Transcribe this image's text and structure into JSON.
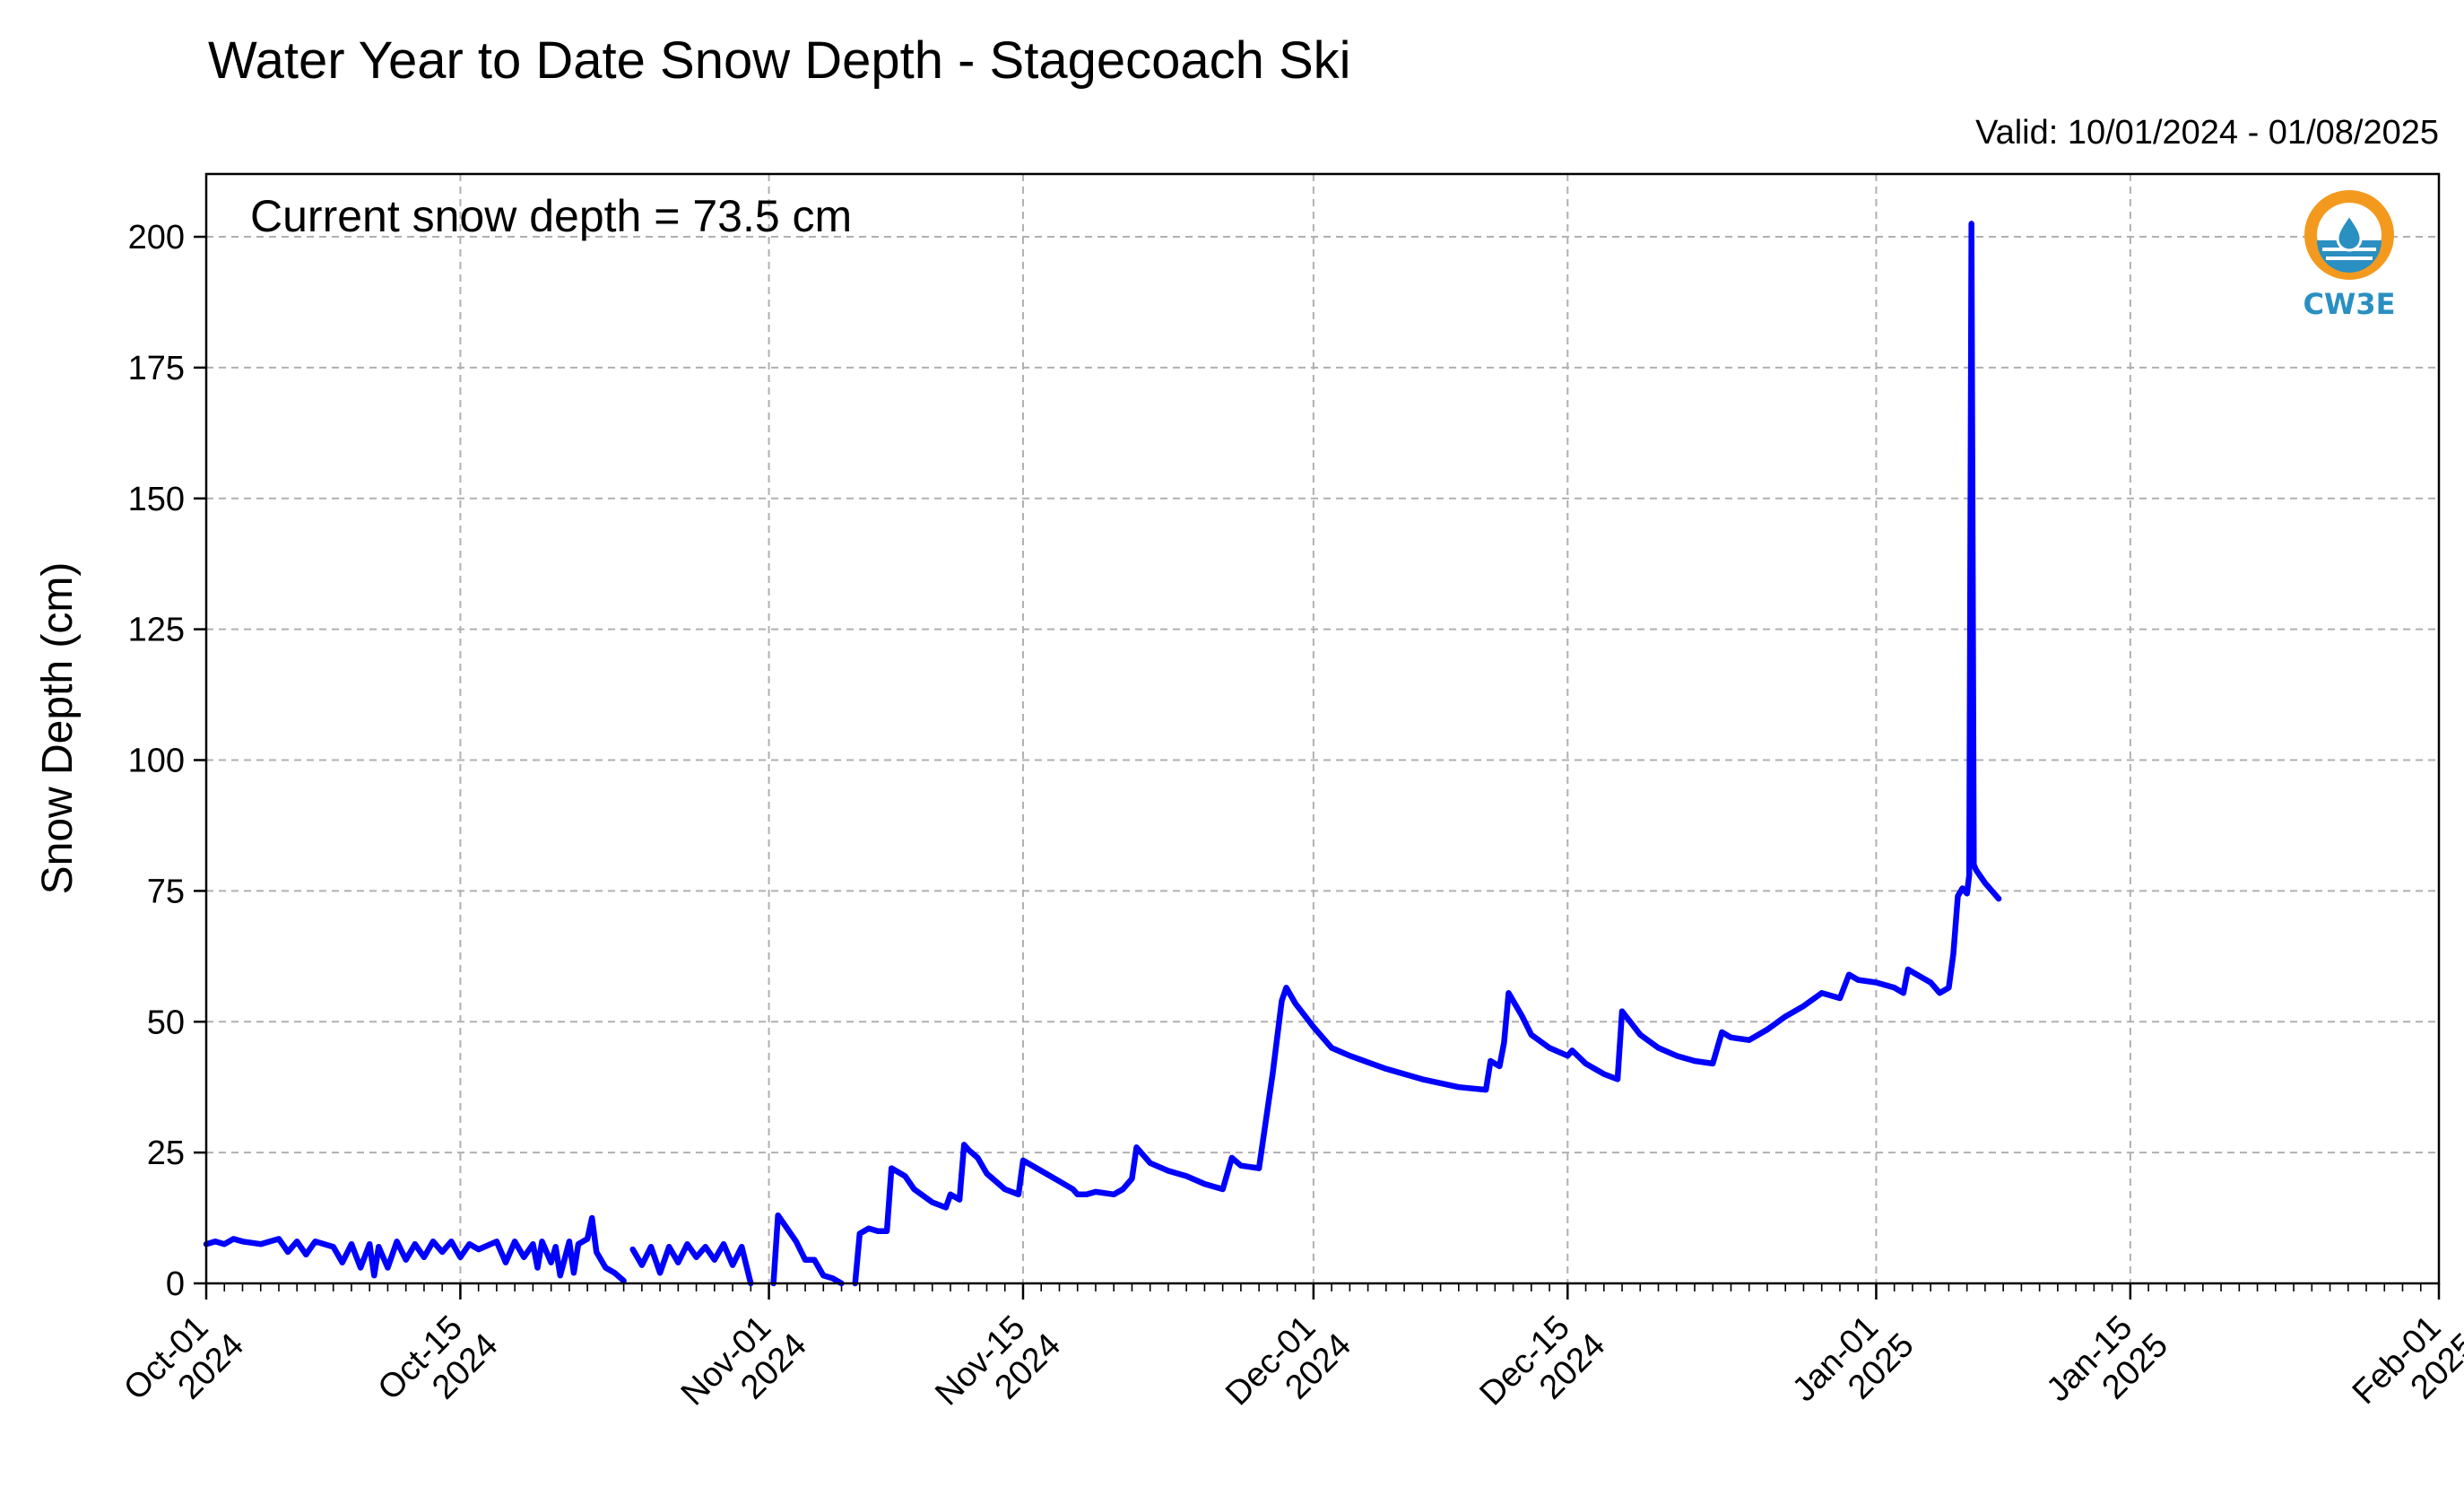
{
  "chart_data": {
    "type": "line",
    "title": "Water Year to Date Snow Depth - Stagecoach Ski",
    "subtitle": "Valid: 10/01/2024 - 01/08/2025",
    "annotation": "Current snow depth = 73.5 cm",
    "xlabel": "",
    "ylabel": "Snow Depth (cm)",
    "ylim": [
      0,
      212
    ],
    "xlim": [
      "2024-10-01",
      "2025-02-01"
    ],
    "yticks": [
      0,
      25,
      50,
      75,
      100,
      125,
      150,
      175,
      200
    ],
    "xticks": [
      {
        "date": "2024-10-01",
        "line1": "Oct-01",
        "line2": "2024"
      },
      {
        "date": "2024-10-15",
        "line1": "Oct-15",
        "line2": "2024"
      },
      {
        "date": "2024-11-01",
        "line1": "Nov-01",
        "line2": "2024"
      },
      {
        "date": "2024-11-15",
        "line1": "Nov-15",
        "line2": "2024"
      },
      {
        "date": "2024-12-01",
        "line1": "Dec-01",
        "line2": "2024"
      },
      {
        "date": "2024-12-15",
        "line1": "Dec-15",
        "line2": "2024"
      },
      {
        "date": "2025-01-01",
        "line1": "Jan-01",
        "line2": "2025"
      },
      {
        "date": "2025-01-15",
        "line1": "Jan-15",
        "line2": "2025"
      },
      {
        "date": "2025-02-01",
        "line1": "Feb-01",
        "line2": "2025"
      }
    ],
    "grid": true,
    "series_color": "#0000ff",
    "series": [
      {
        "segments": [
          [
            [
              "2024-10-01",
              7.5
            ],
            [
              "2024-10-01 12:00",
              8
            ],
            [
              "2024-10-02",
              7.5
            ],
            [
              "2024-10-02 12:00",
              8.5
            ],
            [
              "2024-10-03",
              8
            ],
            [
              "2024-10-04",
              7.5
            ],
            [
              "2024-10-05",
              8.5
            ],
            [
              "2024-10-05 12:00",
              6
            ],
            [
              "2024-10-06",
              8
            ],
            [
              "2024-10-06 12:00",
              5.5
            ],
            [
              "2024-10-07",
              8
            ],
            [
              "2024-10-08",
              7
            ],
            [
              "2024-10-08 12:00",
              4
            ],
            [
              "2024-10-09",
              7.5
            ],
            [
              "2024-10-09 12:00",
              3
            ],
            [
              "2024-10-10",
              7.5
            ],
            [
              "2024-10-10 06:00",
              1.5
            ],
            [
              "2024-10-10 12:00",
              7
            ],
            [
              "2024-10-11",
              3
            ],
            [
              "2024-10-11 12:00",
              8
            ],
            [
              "2024-10-12",
              4.5
            ],
            [
              "2024-10-12 12:00",
              7.5
            ],
            [
              "2024-10-13",
              5
            ],
            [
              "2024-10-13 12:00",
              8
            ],
            [
              "2024-10-14",
              6
            ],
            [
              "2024-10-14 12:00",
              8
            ],
            [
              "2024-10-15",
              5
            ],
            [
              "2024-10-15 12:00",
              7.5
            ],
            [
              "2024-10-16",
              6.5
            ],
            [
              "2024-10-17",
              8
            ],
            [
              "2024-10-17 12:00",
              4
            ],
            [
              "2024-10-18",
              8
            ],
            [
              "2024-10-18 12:00",
              5
            ],
            [
              "2024-10-19",
              7.5
            ],
            [
              "2024-10-19 06:00",
              3
            ],
            [
              "2024-10-19 12:00",
              8
            ],
            [
              "2024-10-20",
              4
            ],
            [
              "2024-10-20 06:00",
              7
            ],
            [
              "2024-10-20 12:00",
              1.5
            ],
            [
              "2024-10-21",
              8
            ],
            [
              "2024-10-21 06:00",
              2
            ],
            [
              "2024-10-21 12:00",
              7.5
            ],
            [
              "2024-10-22",
              8.5
            ],
            [
              "2024-10-22 06:00",
              12.5
            ],
            [
              "2024-10-22 12:00",
              6
            ],
            [
              "2024-10-23",
              3
            ],
            [
              "2024-10-23 12:00",
              2
            ],
            [
              "2024-10-24",
              0.5
            ]
          ],
          [
            [
              "2024-10-24 12:00",
              6.5
            ],
            [
              "2024-10-25",
              3.5
            ],
            [
              "2024-10-25 12:00",
              7
            ],
            [
              "2024-10-26",
              2
            ],
            [
              "2024-10-26 12:00",
              7
            ],
            [
              "2024-10-27",
              4
            ],
            [
              "2024-10-27 12:00",
              7.5
            ],
            [
              "2024-10-28",
              5
            ],
            [
              "2024-10-28 12:00",
              7
            ],
            [
              "2024-10-29",
              4.5
            ],
            [
              "2024-10-29 12:00",
              7.5
            ],
            [
              "2024-10-30",
              3.5
            ],
            [
              "2024-10-30 12:00",
              7
            ],
            [
              "2024-10-31",
              0
            ]
          ],
          [
            [
              "2024-11-01 06:00",
              0
            ],
            [
              "2024-11-01 12:00",
              13
            ],
            [
              "2024-11-02",
              10.5
            ],
            [
              "2024-11-02 12:00",
              8
            ],
            [
              "2024-11-03",
              4.5
            ],
            [
              "2024-11-03 12:00",
              4.5
            ],
            [
              "2024-11-04",
              1.5
            ],
            [
              "2024-11-04 12:00",
              1
            ],
            [
              "2024-11-05",
              0
            ]
          ],
          [
            [
              "2024-11-05 18:00",
              0
            ],
            [
              "2024-11-06",
              9.5
            ],
            [
              "2024-11-06 12:00",
              10.5
            ],
            [
              "2024-11-07",
              10
            ],
            [
              "2024-11-07 12:00",
              10
            ],
            [
              "2024-11-07 18:00",
              22
            ],
            [
              "2024-11-08 12:00",
              20.5
            ],
            [
              "2024-11-09",
              18
            ],
            [
              "2024-11-10",
              15.5
            ],
            [
              "2024-11-10 18:00",
              14.5
            ],
            [
              "2024-11-11",
              17
            ],
            [
              "2024-11-11 12:00",
              16
            ],
            [
              "2024-11-11 18:00",
              26.5
            ],
            [
              "2024-11-12",
              25.5
            ],
            [
              "2024-11-12 12:00",
              24
            ],
            [
              "2024-11-13",
              21
            ],
            [
              "2024-11-14",
              18
            ],
            [
              "2024-11-14 18:00",
              17
            ],
            [
              "2024-11-15",
              23.5
            ],
            [
              "2024-11-16",
              21.5
            ],
            [
              "2024-11-17",
              19.5
            ],
            [
              "2024-11-17 18:00",
              18
            ],
            [
              "2024-11-18",
              17
            ],
            [
              "2024-11-18 12:00",
              17
            ],
            [
              "2024-11-19",
              17.5
            ],
            [
              "2024-11-20",
              17
            ],
            [
              "2024-11-20 12:00",
              18
            ],
            [
              "2024-11-21",
              20
            ],
            [
              "2024-11-21 06:00",
              26
            ],
            [
              "2024-11-22",
              23
            ],
            [
              "2024-11-23",
              21.5
            ],
            [
              "2024-11-24",
              20.5
            ],
            [
              "2024-11-25",
              19
            ],
            [
              "2024-11-26",
              18
            ],
            [
              "2024-11-26 12:00",
              24
            ],
            [
              "2024-11-27",
              22.5
            ],
            [
              "2024-11-28",
              22
            ],
            [
              "2024-11-28 18:00",
              40
            ],
            [
              "2024-11-29 06:00",
              54
            ],
            [
              "2024-11-29 12:00",
              56.5
            ],
            [
              "2024-11-30",
              53.5
            ],
            [
              "2024-12-01",
              49
            ],
            [
              "2024-12-02",
              45
            ],
            [
              "2024-12-03",
              43.5
            ],
            [
              "2024-12-05",
              41
            ],
            [
              "2024-12-07",
              39
            ],
            [
              "2024-12-09",
              37.5
            ],
            [
              "2024-12-10 12:00",
              37
            ],
            [
              "2024-12-10 18:00",
              42.5
            ],
            [
              "2024-12-11 06:00",
              41.5
            ],
            [
              "2024-12-11 12:00",
              46
            ],
            [
              "2024-12-11 18:00",
              55.5
            ],
            [
              "2024-12-12 12:00",
              51
            ],
            [
              "2024-12-13",
              47.5
            ],
            [
              "2024-12-14",
              45
            ],
            [
              "2024-12-15",
              43.5
            ],
            [
              "2024-12-15 06:00",
              44.5
            ],
            [
              "2024-12-16",
              42
            ],
            [
              "2024-12-17",
              40
            ],
            [
              "2024-12-17 18:00",
              39
            ],
            [
              "2024-12-18",
              52
            ],
            [
              "2024-12-19",
              47.5
            ],
            [
              "2024-12-20",
              45
            ],
            [
              "2024-12-21",
              43.5
            ],
            [
              "2024-12-22",
              42.5
            ],
            [
              "2024-12-23",
              42
            ],
            [
              "2024-12-23 12:00",
              48
            ],
            [
              "2024-12-24",
              47
            ],
            [
              "2024-12-25",
              46.5
            ],
            [
              "2024-12-26",
              48.5
            ],
            [
              "2024-12-27",
              51
            ],
            [
              "2024-12-28",
              53
            ],
            [
              "2024-12-29",
              55.5
            ],
            [
              "2024-12-30",
              54.5
            ],
            [
              "2024-12-30 12:00",
              59
            ],
            [
              "2024-12-31",
              58
            ],
            [
              "2025-01-01",
              57.5
            ],
            [
              "2025-01-02",
              56.5
            ],
            [
              "2025-01-02 12:00",
              55.5
            ],
            [
              "2025-01-02 18:00",
              60
            ],
            [
              "2025-01-03 12:00",
              58.5
            ],
            [
              "2025-01-04",
              57.5
            ],
            [
              "2025-01-04 12:00",
              55.5
            ],
            [
              "2025-01-05",
              56.5
            ],
            [
              "2025-01-05 06:00",
              63
            ],
            [
              "2025-01-05 12:00",
              74
            ],
            [
              "2025-01-05 18:00",
              75.5
            ],
            [
              "2025-01-06",
              74.5
            ],
            [
              "2025-01-06 03:00",
              78
            ],
            [
              "2025-01-06 06:00",
              202.5
            ],
            [
              "2025-01-06 09:00",
              80
            ],
            [
              "2025-01-06 12:00",
              79
            ],
            [
              "2025-01-07",
              76.5
            ],
            [
              "2025-01-07 18:00",
              73.5
            ]
          ]
        ]
      }
    ]
  }
}
